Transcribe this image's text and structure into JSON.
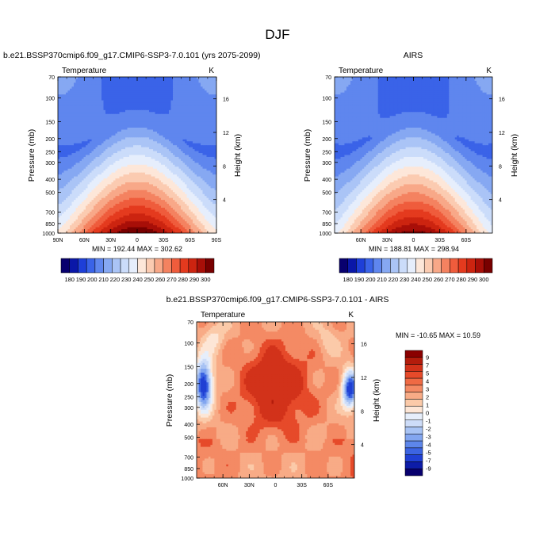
{
  "figure": {
    "title": "DJF"
  },
  "colors": {
    "abs_scale": [
      "#08006e",
      "#0a17a8",
      "#1e3fd8",
      "#3a63e8",
      "#5f86ee",
      "#86a8f2",
      "#aac4f6",
      "#cbdcfa",
      "#e6eefc",
      "#fde7d9",
      "#fbcbb1",
      "#f8a888",
      "#f48260",
      "#ef5c3c",
      "#e43a1e",
      "#cc2410",
      "#a80f08",
      "#780000"
    ],
    "diff_scale": [
      "#08006e",
      "#0d1ca8",
      "#2040d4",
      "#3c64e2",
      "#5d86ea",
      "#83a6f0",
      "#a8c3f4",
      "#cddcf8",
      "#e6eefb",
      "#fde6d6",
      "#fbcaa9",
      "#f8ab86",
      "#f48a64",
      "#ef6a44",
      "#e64a2a",
      "#d2321a",
      "#b31c0c",
      "#8a0000"
    ]
  },
  "chart_data": [
    {
      "type": "heatmap",
      "panel": "model",
      "title": "b.e21.BSSP370cmip6.f09_g17.CMIP6-SSP3-7.0.101 (yrs 2075-2099)",
      "left_label": "Temperature",
      "right_label": "K",
      "ylabel": "Pressure (mb)",
      "y2label": "Height (km)",
      "x_ticks": [
        "90N",
        "60N",
        "30N",
        "0",
        "30S",
        "60S",
        "90S"
      ],
      "y_ticks": [
        "70",
        "100",
        "150",
        "200",
        "250",
        "300",
        "400",
        "500",
        "700",
        "850",
        "1000"
      ],
      "y2_ticks": [
        "16",
        "12",
        "8",
        "4"
      ],
      "stats": "MIN = 192.44   MAX = 302.62",
      "colorbar_labels": [
        "180",
        "190",
        "200",
        "210",
        "220",
        "230",
        "240",
        "250",
        "260",
        "270",
        "280",
        "290",
        "300"
      ],
      "min": 192.44,
      "max": 302.62
    },
    {
      "type": "heatmap",
      "panel": "obs",
      "title": "AIRS",
      "left_label": "Temperature",
      "right_label": "K",
      "ylabel": "Pressure (mb)",
      "y2label": "Height (km)",
      "x_ticks": [
        "60N",
        "30N",
        "0",
        "30S",
        "60S"
      ],
      "y_ticks": [
        "70",
        "100",
        "150",
        "200",
        "250",
        "300",
        "400",
        "500",
        "700",
        "850",
        "1000"
      ],
      "y2_ticks": [
        "16",
        "12",
        "8",
        "4"
      ],
      "stats": "MIN = 188.81   MAX = 298.94",
      "colorbar_labels": [
        "180",
        "190",
        "200",
        "210",
        "220",
        "230",
        "240",
        "250",
        "260",
        "270",
        "280",
        "290",
        "300"
      ],
      "min": 188.81,
      "max": 298.94
    },
    {
      "type": "heatmap",
      "panel": "diff",
      "title": "b.e21.BSSP370cmip6.f09_g17.CMIP6-SSP3-7.0.101 - AIRS",
      "left_label": "Temperature",
      "right_label": "K",
      "ylabel": "Pressure (mb)",
      "y2label": "Height (km)",
      "x_ticks": [
        "60N",
        "30N",
        "0",
        "30S",
        "60S"
      ],
      "y_ticks": [
        "70",
        "100",
        "150",
        "200",
        "250",
        "300",
        "400",
        "500",
        "700",
        "850",
        "1000"
      ],
      "y2_ticks": [
        "16",
        "12",
        "8",
        "4"
      ],
      "stats": "MIN = -10.65   MAX =  10.59",
      "colorbar_labels": [
        "9",
        "7",
        "5",
        "4",
        "3",
        "2",
        "1",
        "0",
        "-1",
        "-2",
        "-3",
        "-4",
        "-5",
        "-7",
        "-9"
      ],
      "min": -10.65,
      "max": 10.59
    }
  ]
}
